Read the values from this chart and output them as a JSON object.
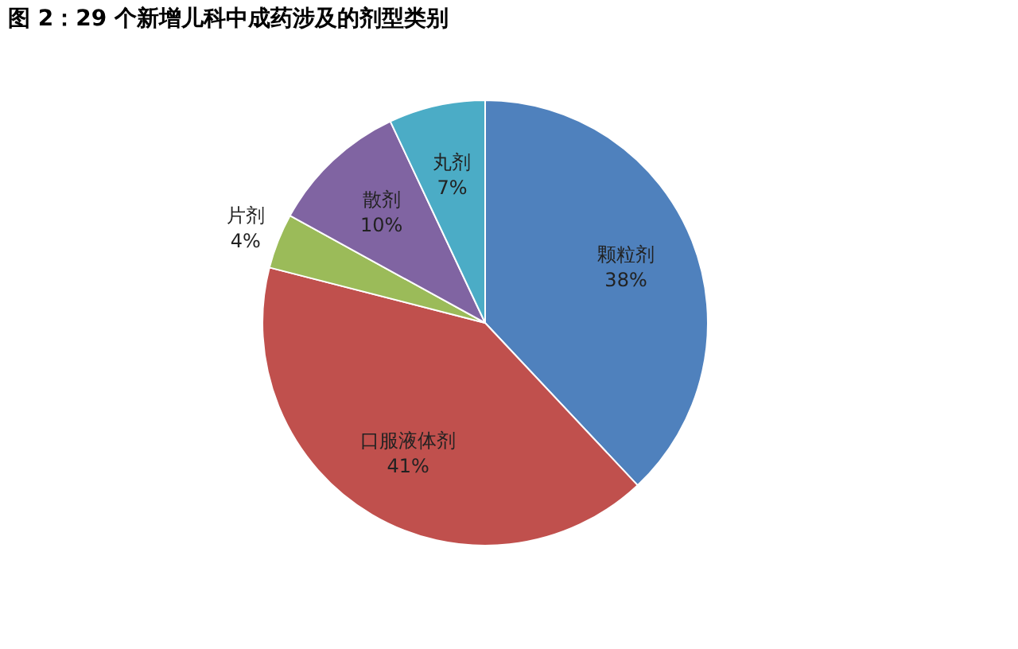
{
  "chart_data": {
    "type": "pie",
    "title": "图 2：29 个新增儿科中成药涉及的剂型类别",
    "categories": [
      "颗粒剂",
      "口服液体剂",
      "片剂",
      "散剂",
      "丸剂"
    ],
    "values": [
      38,
      41,
      4,
      10,
      7
    ],
    "value_labels": [
      "38%",
      "41%",
      "4%",
      "10%",
      "7%"
    ],
    "colors": [
      "#4f81bd",
      "#c0504d",
      "#9bbb59",
      "#8064a2",
      "#4bacc6"
    ],
    "legend": false
  }
}
